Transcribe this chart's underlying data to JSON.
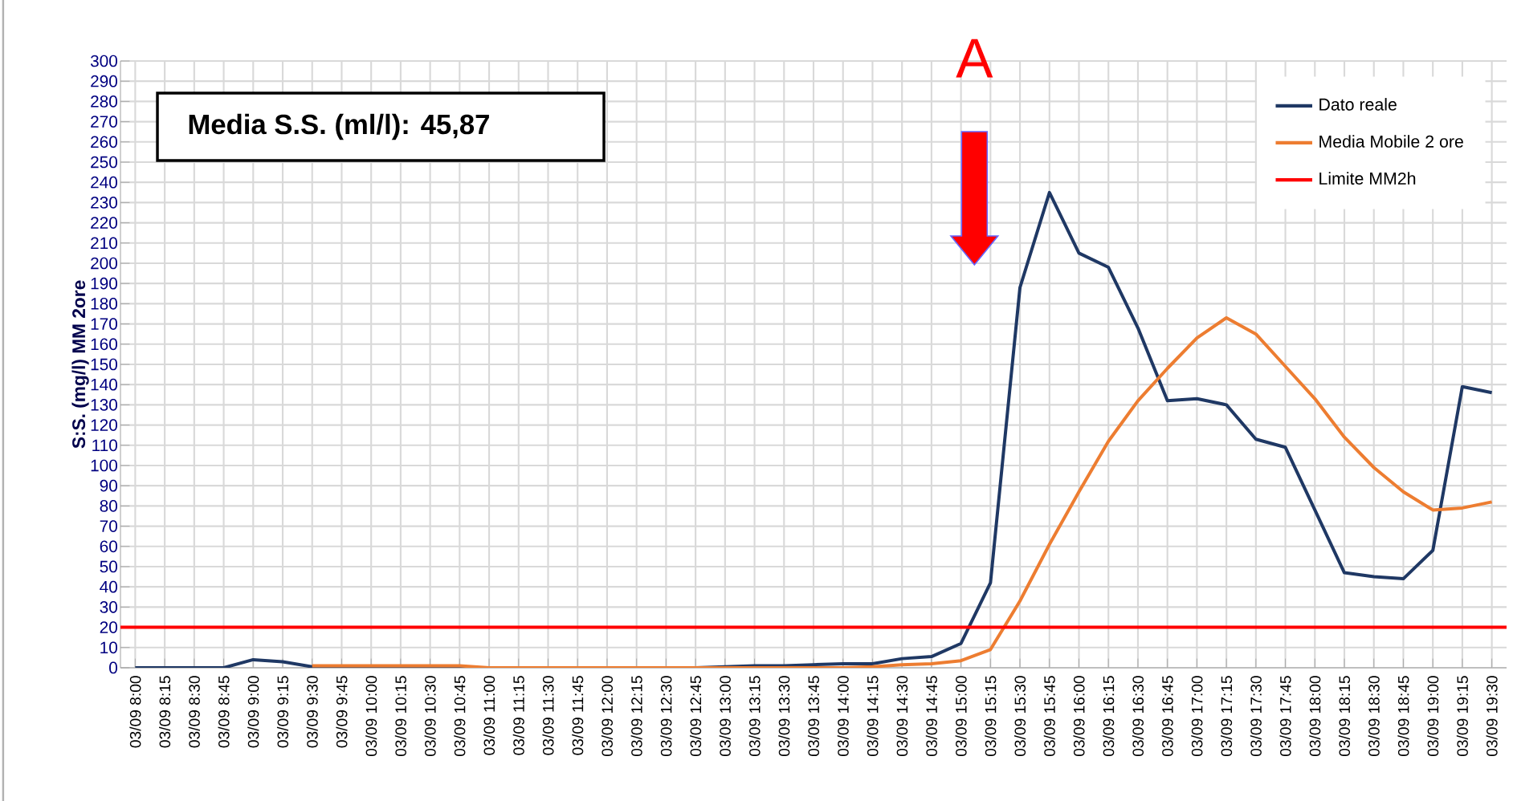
{
  "chart_data": {
    "type": "line",
    "ylabel": "S:S. (mg/l) MM 2ore",
    "categories": [
      "03/09 8:00",
      "03/09 8:15",
      "03/09 8:30",
      "03/09 8:45",
      "03/09 9:00",
      "03/09 9:15",
      "03/09 9:30",
      "03/09 9:45",
      "03/09 10:00",
      "03/09 10:15",
      "03/09 10:30",
      "03/09 10:45",
      "03/09 11:00",
      "03/09 11:15",
      "03/09 11:30",
      "03/09 11:45",
      "03/09 12:00",
      "03/09 12:15",
      "03/09 12:30",
      "03/09 12:45",
      "03/09 13:00",
      "03/09 13:15",
      "03/09 13:30",
      "03/09 13:45",
      "03/09 14:00",
      "03/09 14:15",
      "03/09 14:30",
      "03/09 14:45",
      "03/09 15:00",
      "03/09 15:15",
      "03/09 15:30",
      "03/09 15:45",
      "03/09 16:00",
      "03/09 16:15",
      "03/09 16:30",
      "03/09 16:45",
      "03/09 17:00",
      "03/09 17:15",
      "03/09 17:30",
      "03/09 17:45",
      "03/09 18:00",
      "03/09 18:15",
      "03/09 18:30",
      "03/09 18:45",
      "03/09 19:00",
      "03/09 19:15",
      "03/09 19:30"
    ],
    "series": [
      {
        "name": "Dato reale",
        "color": "#1f3864",
        "values": [
          0,
          0,
          0,
          0,
          4,
          3,
          0.5,
          0,
          0,
          0,
          0,
          0,
          0,
          0,
          0,
          0,
          0,
          0,
          0,
          0,
          0.5,
          1,
          1,
          1.5,
          2,
          2,
          4.5,
          5.5,
          12,
          42,
          188,
          235,
          205,
          198,
          168,
          132,
          133,
          130,
          113,
          109,
          78,
          47,
          45,
          44,
          58,
          139,
          136
        ]
      },
      {
        "name": "Media Mobile 2 ore",
        "color": "#ed7d31",
        "values": [
          null,
          null,
          null,
          null,
          null,
          null,
          1,
          1,
          1,
          1,
          1,
          1,
          0,
          0,
          0,
          0,
          0,
          0,
          0,
          0,
          0,
          0,
          0,
          0,
          0,
          0.5,
          1.5,
          2,
          3.5,
          9,
          33,
          61,
          87,
          112,
          132,
          148,
          163,
          173,
          165,
          149,
          133,
          114,
          99,
          87,
          78,
          79,
          82
        ]
      }
    ],
    "ylim": [
      0,
      300
    ],
    "yticks": [
      0,
      10,
      20,
      30,
      40,
      50,
      60,
      70,
      80,
      90,
      100,
      110,
      120,
      130,
      140,
      150,
      160,
      170,
      180,
      190,
      200,
      210,
      220,
      230,
      240,
      250,
      260,
      270,
      280,
      290,
      300
    ],
    "ref_lines": [
      {
        "axis": "y",
        "value": 20,
        "label": "Limite MM2h",
        "color": "#ff0000"
      }
    ],
    "annotations": [
      "Media S.S. (ml/l): 45,87",
      "A"
    ],
    "grid": true,
    "legend": "top right",
    "line_style": "solid",
    "marker": "none"
  }
}
